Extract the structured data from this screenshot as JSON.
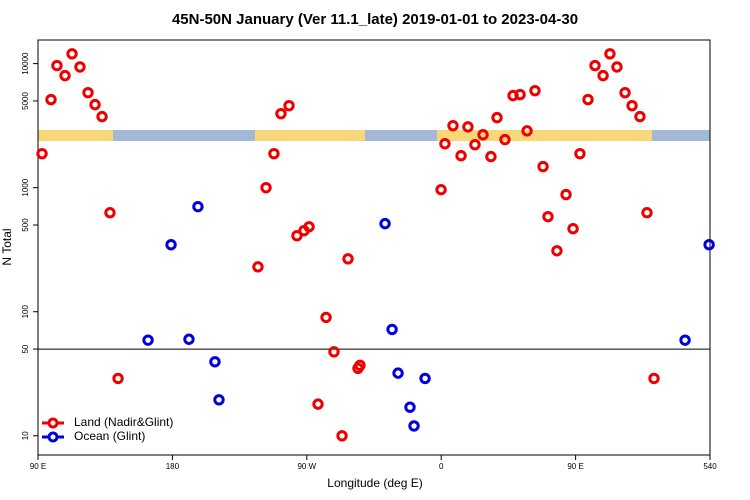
{
  "chart_data": {
    "type": "scatter",
    "title": "45N-50N January (Ver 11.1_late)   2019-01-01 to 2023-04-30",
    "xlabel": "Longitude (deg E)",
    "ylabel": "N Total",
    "xlim": [
      90,
      540
    ],
    "xticks": [
      {
        "value": 90,
        "label": "90 E"
      },
      180,
      {
        "value": 270,
        "label": "90 W"
      },
      {
        "value": 360,
        "label": "0"
      },
      {
        "value": 450,
        "label": "90 E"
      },
      540
    ],
    "ylim": [
      7,
      15500
    ],
    "log_y": true,
    "yticks": [
      10,
      50,
      100,
      500,
      1000,
      5000,
      10000
    ],
    "hline": 50,
    "legend": "lower left",
    "series": [
      {
        "name": "Land (Nadir&Glint)",
        "color": "#ee0000",
        "x": [
          92.7,
          98.7,
          102.7,
          108.1,
          112.8,
          118.1,
          123.5,
          128.2,
          132.9,
          138.2,
          143.6,
          237.3,
          242.7,
          248.0,
          252.7,
          258.1,
          263.4,
          268.1,
          271.5,
          277.5,
          282.9,
          288.2,
          293.6,
          297.6,
          304.3,
          305.6,
          359.9,
          362.5,
          367.9,
          373.3,
          377.9,
          382.6,
          388.0,
          393.3,
          397.4,
          402.7,
          408.1,
          412.8,
          417.5,
          422.8,
          428.2,
          431.5,
          437.5,
          443.6,
          448.3,
          452.9,
          458.3,
          463.0,
          468.4,
          473.0,
          477.7,
          483.1,
          487.8,
          493.1,
          497.8,
          502.5
        ],
        "values": [
          1880,
          5130,
          9640,
          8000,
          12000,
          9400,
          5830,
          4670,
          3740,
          628,
          29,
          230,
          1000,
          1880,
          3950,
          4580,
          410,
          450,
          484,
          18,
          90,
          47.5,
          10,
          267,
          35,
          37,
          964,
          2260,
          3160,
          1810,
          3090,
          2220,
          2670,
          1780,
          3670,
          2440,
          5520,
          5630,
          2870,
          6050,
          1480,
          584,
          310,
          880,
          467,
          1880,
          5130,
          9640,
          8000,
          12000,
          9400,
          5830,
          4580,
          3740,
          628,
          29
        ]
      },
      {
        "name": "Ocean (Glint)",
        "color": "#0000dd",
        "x": [
          163.7,
          179.1,
          191.1,
          197.1,
          208.5,
          211.2,
          322.4,
          327.1,
          331.1,
          339.1,
          341.8,
          349.2,
          523.3,
          539.4
        ],
        "values": [
          59,
          347,
          60,
          703,
          39.5,
          19.5,
          513,
          72,
          32,
          17,
          12,
          29,
          59,
          347
        ]
      }
    ]
  }
}
